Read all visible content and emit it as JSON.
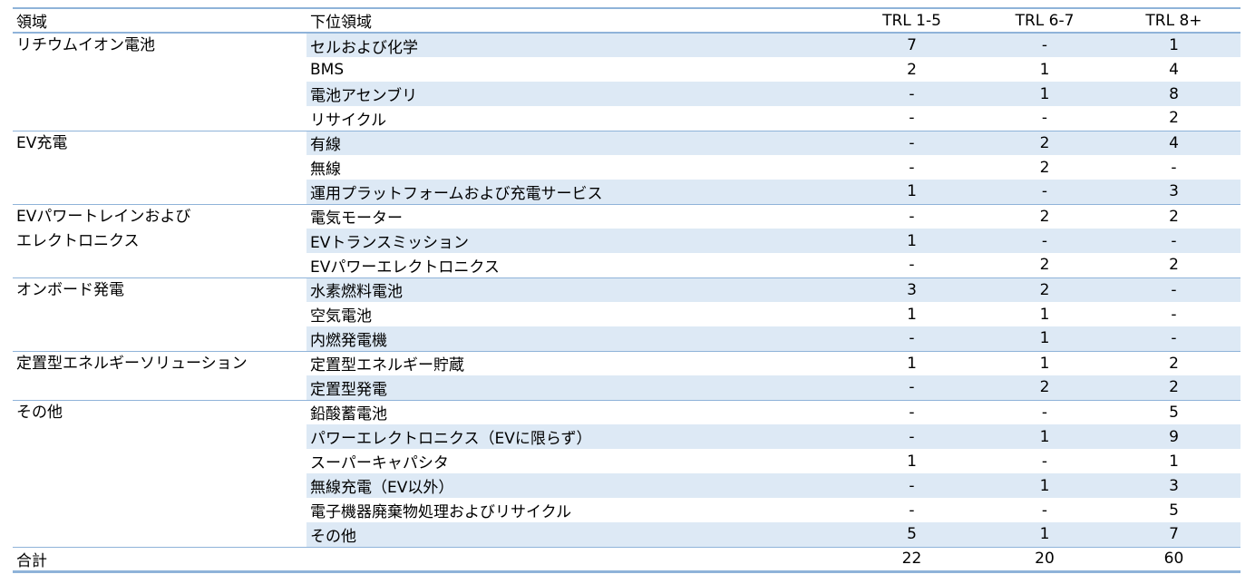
{
  "header": {
    "area": "領域",
    "subarea": "下位領域",
    "trl1": "TRL 1-5",
    "trl2": "TRL 6-7",
    "trl3": "TRL 8+"
  },
  "groups": [
    {
      "area": "リチウムイオン電池",
      "rows": [
        {
          "sub": "セルおよび化学",
          "t1": "7",
          "t2": "-",
          "t3": "1"
        },
        {
          "sub": "BMS",
          "t1": "2",
          "t2": "1",
          "t3": "4"
        },
        {
          "sub": "電池アセンブリ",
          "t1": "-",
          "t2": "1",
          "t3": "8"
        },
        {
          "sub": "リサイクル",
          "t1": "-",
          "t2": "-",
          "t3": "2"
        }
      ]
    },
    {
      "area": "EV充電",
      "rows": [
        {
          "sub": "有線",
          "t1": "-",
          "t2": "2",
          "t3": "4"
        },
        {
          "sub": "無線",
          "t1": "-",
          "t2": "2",
          "t3": "-"
        },
        {
          "sub": "運用プラットフォームおよび充電サービス",
          "t1": "1",
          "t2": "-",
          "t3": "3"
        }
      ]
    },
    {
      "area": "EVパワートレインおよび",
      "area2": "エレクトロニクス",
      "rows": [
        {
          "sub": "電気モーター",
          "t1": "-",
          "t2": "2",
          "t3": "2"
        },
        {
          "sub": "EVトランスミッション",
          "t1": "1",
          "t2": "-",
          "t3": "-"
        },
        {
          "sub": "EVパワーエレクトロニクス",
          "t1": "-",
          "t2": "2",
          "t3": "2"
        }
      ]
    },
    {
      "area": "オンボード発電",
      "rows": [
        {
          "sub": "水素燃料電池",
          "t1": "3",
          "t2": "2",
          "t3": "-"
        },
        {
          "sub": "空気電池",
          "t1": "1",
          "t2": "1",
          "t3": "-"
        },
        {
          "sub": "内燃発電機",
          "t1": "-",
          "t2": "1",
          "t3": "-"
        }
      ]
    },
    {
      "area": "定置型エネルギーソリューション",
      "rows": [
        {
          "sub": "定置型エネルギー貯蔵",
          "t1": "1",
          "t2": "1",
          "t3": "2"
        },
        {
          "sub": "定置型発電",
          "t1": "-",
          "t2": "2",
          "t3": "2"
        }
      ]
    },
    {
      "area": "その他",
      "rows": [
        {
          "sub": "鉛酸蓄電池",
          "t1": "-",
          "t2": "-",
          "t3": "5"
        },
        {
          "sub": "パワーエレクトロニクス（EVに限らず）",
          "t1": "-",
          "t2": "1",
          "t3": "9"
        },
        {
          "sub": "スーパーキャパシタ",
          "t1": "1",
          "t2": "-",
          "t3": "1"
        },
        {
          "sub": "無線充電（EV以外）",
          "t1": "-",
          "t2": "1",
          "t3": "3"
        },
        {
          "sub": "電子機器廃棄物処理およびリサイクル",
          "t1": "-",
          "t2": "-",
          "t3": "5"
        },
        {
          "sub": "その他",
          "t1": "5",
          "t2": "1",
          "t3": "7"
        }
      ]
    }
  ],
  "total": {
    "label": "合計",
    "t1": "22",
    "t2": "20",
    "t3": "60"
  },
  "colors": {
    "rule": "#8fb3d9",
    "shade": "#dde9f5"
  }
}
